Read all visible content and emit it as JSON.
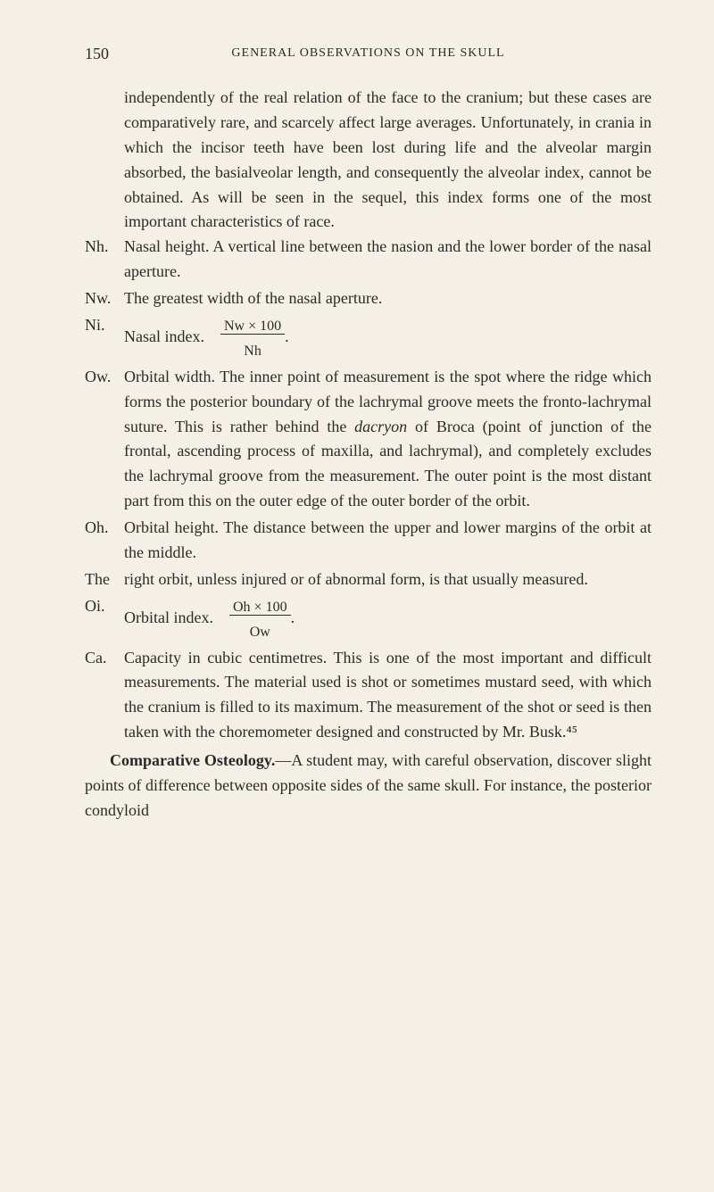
{
  "page_number": "150",
  "header": "GENERAL OBSERVATIONS ON THE SKULL",
  "intro_para": "independently of the real relation of the face to the cranium; but these cases are comparatively rare, and scarcely affect large averages. Unfortunately, in crania in which the incisor teeth have been lost during life and the alveolar margin absorbed, the basialveolar length, and consequently the alveolar index, cannot be obtained. As will be seen in the sequel, this index forms one of the most important characteristics of race.",
  "entries": {
    "nh": {
      "label": "Nh.",
      "text": "Nasal height. A vertical line between the nasion and the lower border of the nasal aperture."
    },
    "nw": {
      "label": "Nw.",
      "text": "The greatest width of the nasal aperture."
    },
    "ni": {
      "label": "Ni.",
      "text_before": "Nasal index.",
      "formula_top": "Nw × 100",
      "formula_bottom": "Nh"
    },
    "ow": {
      "label": "Ow.",
      "text": "Orbital width. The inner point of measurement is the spot where the ridge which forms the posterior boundary of the lachrymal groove meets the fronto-lachrymal suture. This is rather behind the ",
      "italic": "dacryon",
      "text_after": " of Broca (point of junction of the frontal, ascending process of maxilla, and lachrymal), and completely excludes the lachrymal groove from the measurement. The outer point is the most distant part from this on the outer edge of the outer border of the orbit."
    },
    "oh": {
      "label": "Oh.",
      "text": "Orbital height. The distance between the upper and lower margins of the orbit at the middle."
    },
    "the": {
      "label": "The",
      "text": "right orbit, unless injured or of abnormal form, is that usually measured."
    },
    "oi": {
      "label": "Oi.",
      "text_before": "Orbital index.",
      "formula_top": "Oh × 100",
      "formula_bottom": "Ow"
    },
    "ca": {
      "label": "Ca.",
      "text": "Capacity in cubic centimetres. This is one of the most important and difficult measurements. The material used is shot or sometimes mustard seed, with which the cranium is filled to its maximum. The measurement of the shot or seed is then taken with the choremometer designed and constructed by Mr. Busk.⁴⁵"
    }
  },
  "bottom_title": "Comparative Osteology.",
  "bottom_text": "—A student may, with careful observation, discover slight points of difference between opposite sides of the same skull. For instance, the posterior condyloid"
}
